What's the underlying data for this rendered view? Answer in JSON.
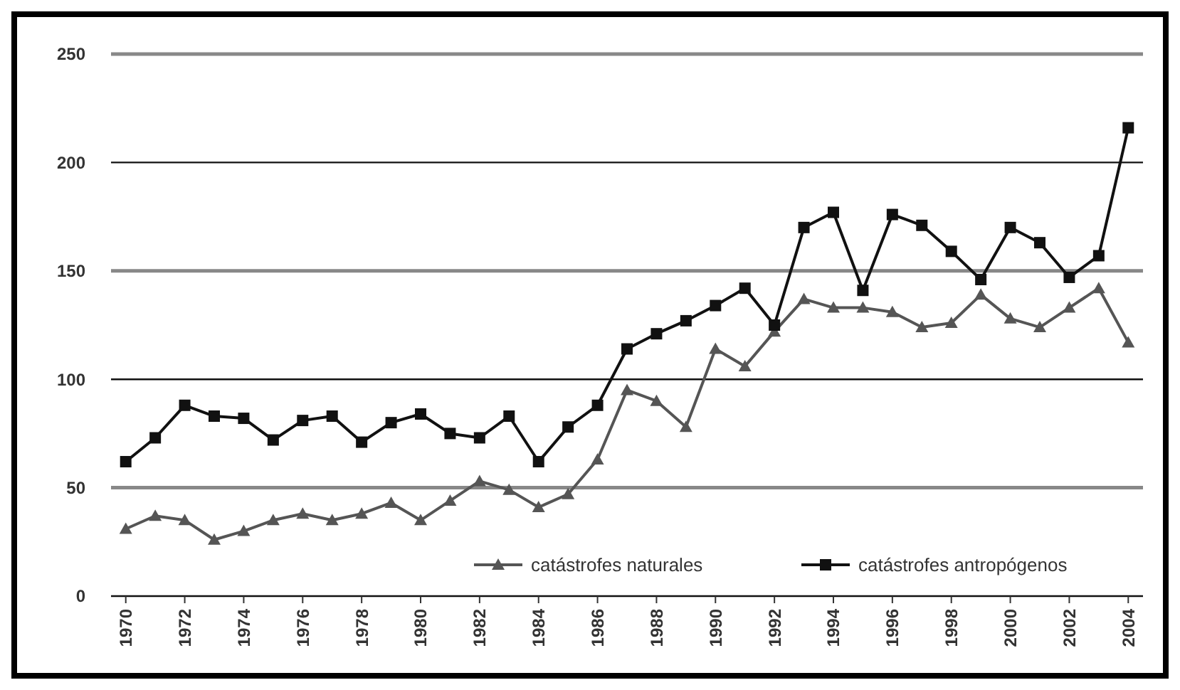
{
  "chart_data": {
    "type": "line",
    "x": [
      1970,
      1971,
      1972,
      1973,
      1974,
      1975,
      1976,
      1977,
      1978,
      1979,
      1980,
      1981,
      1982,
      1983,
      1984,
      1985,
      1986,
      1987,
      1988,
      1989,
      1990,
      1991,
      1992,
      1993,
      1994,
      1995,
      1996,
      1997,
      1998,
      1999,
      2000,
      2001,
      2002,
      2003,
      2004
    ],
    "xlim": [
      1969.5,
      2004.5
    ],
    "xticks": [
      1970,
      1972,
      1974,
      1976,
      1978,
      1980,
      1982,
      1984,
      1986,
      1988,
      1990,
      1992,
      1994,
      1996,
      1998,
      2000,
      2002,
      2004
    ],
    "ylim": [
      0,
      250
    ],
    "yticks": [
      0,
      50,
      100,
      150,
      200,
      250
    ],
    "grid": "y",
    "legend": "bottom right",
    "series": [
      {
        "name": "catástrofes naturales",
        "color": "#555555",
        "marker": "triangle",
        "values": [
          31,
          37,
          35,
          26,
          30,
          35,
          38,
          35,
          38,
          43,
          35,
          44,
          53,
          49,
          41,
          47,
          63,
          95,
          90,
          78,
          114,
          106,
          122,
          137,
          133,
          133,
          131,
          124,
          126,
          139,
          128,
          124,
          133,
          142,
          117
        ]
      },
      {
        "name": "catástrofes antropógenos",
        "color": "#111111",
        "marker": "square",
        "values": [
          62,
          73,
          88,
          83,
          82,
          72,
          81,
          83,
          71,
          80,
          84,
          75,
          73,
          83,
          62,
          78,
          88,
          114,
          121,
          127,
          134,
          142,
          125,
          170,
          177,
          141,
          176,
          171,
          159,
          146,
          170,
          163,
          147,
          157,
          216
        ]
      }
    ]
  }
}
